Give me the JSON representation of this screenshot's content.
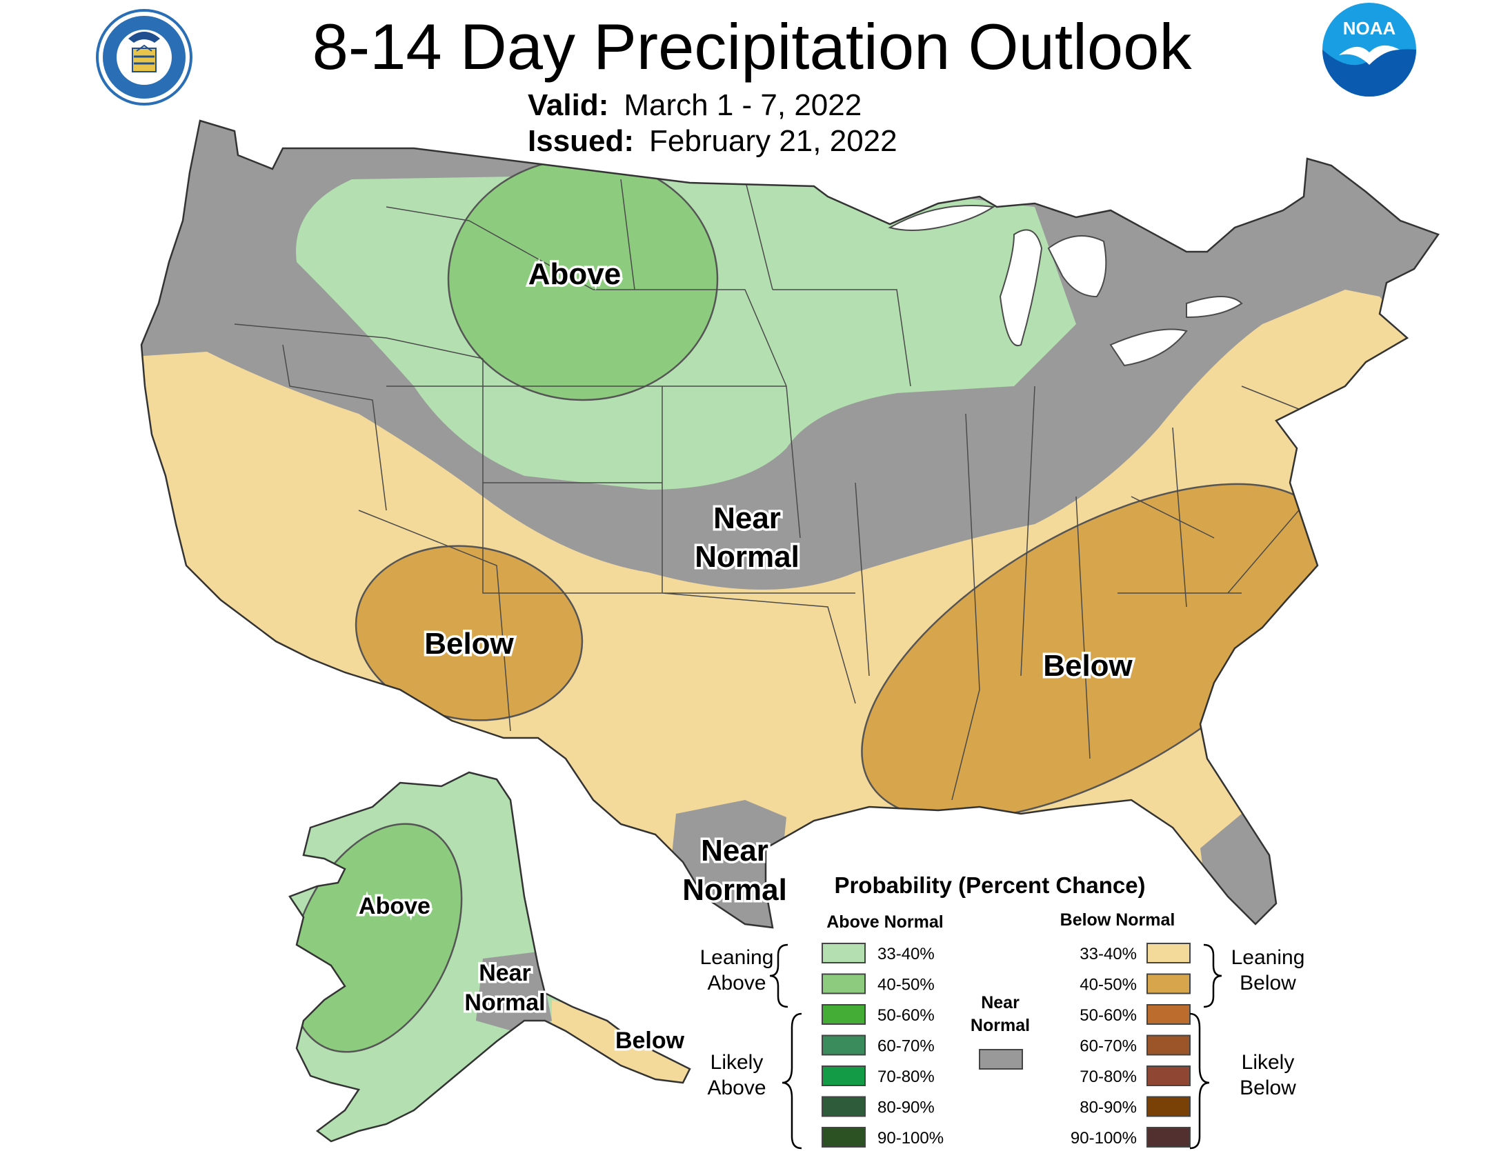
{
  "title": "8-14 Day Precipitation Outlook",
  "valid_label": "Valid:",
  "valid_value": "March 1 - 7, 2022",
  "issued_label": "Issued:",
  "issued_value": "February 21, 2022",
  "logos": {
    "left": "commerce-seal-logo",
    "right": "noaa-logo",
    "noaa_text": "NOAA"
  },
  "map_labels": {
    "north_above": "Above",
    "central_near_1": "Near",
    "central_near_2": "Normal",
    "sw_below": "Below",
    "se_below": "Below",
    "tx_near_1": "Near",
    "tx_near_2": "Normal",
    "ak_above": "Above",
    "ak_near_1": "Near",
    "ak_near_2": "Normal",
    "ak_below": "Below"
  },
  "colors": {
    "above_33_40": "#b3dfb1",
    "above_40_50": "#8dcc7f",
    "near_normal": "#9a9a9a",
    "below_33_40": "#f3d99a",
    "below_40_50": "#d7a54c",
    "state_border": "#4a4a4a"
  },
  "legend": {
    "title": "Probability (Percent Chance)",
    "above_header": "Above Normal",
    "below_header": "Below Normal",
    "leaning_above": [
      "Leaning",
      "Above"
    ],
    "likely_above": [
      "Likely",
      "Above"
    ],
    "leaning_below": [
      "Leaning",
      "Below"
    ],
    "likely_below": [
      "Likely",
      "Below"
    ],
    "near_normal": [
      "Near",
      "Normal"
    ],
    "near_normal_color": "#999999",
    "above_rows": [
      {
        "label": "33-40%",
        "color": "#b3dfb1"
      },
      {
        "label": "40-50%",
        "color": "#8dcc7f"
      },
      {
        "label": "50-60%",
        "color": "#43ad36"
      },
      {
        "label": "60-70%",
        "color": "#3a8c5c"
      },
      {
        "label": "70-80%",
        "color": "#139b45"
      },
      {
        "label": "80-90%",
        "color": "#2e5c3a"
      },
      {
        "label": "90-100%",
        "color": "#2c5223"
      }
    ],
    "below_rows": [
      {
        "label": "33-40%",
        "color": "#f3d99a"
      },
      {
        "label": "40-50%",
        "color": "#d7a54c"
      },
      {
        "label": "50-60%",
        "color": "#bc6d2d"
      },
      {
        "label": "60-70%",
        "color": "#9c5529"
      },
      {
        "label": "70-80%",
        "color": "#8f4632"
      },
      {
        "label": "80-90%",
        "color": "#7a4107"
      },
      {
        "label": "90-100%",
        "color": "#52302f"
      }
    ]
  }
}
